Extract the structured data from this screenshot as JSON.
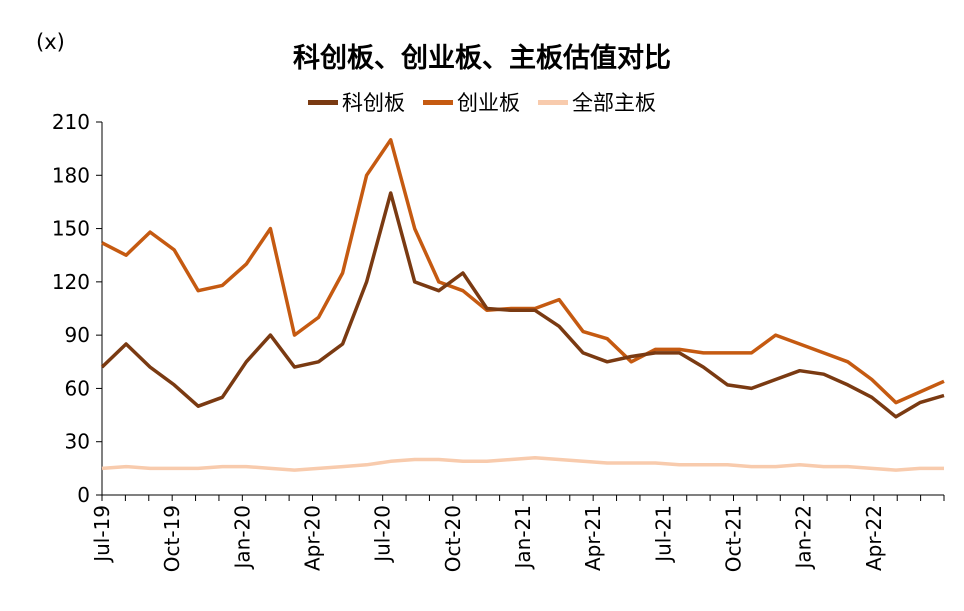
{
  "chart_data": {
    "type": "line",
    "title": "科创板、创业板、主板估值对比",
    "unit_label": "(x)",
    "ylim": [
      0,
      210
    ],
    "yticks": [
      0,
      30,
      60,
      90,
      120,
      150,
      180,
      210
    ],
    "xticks": [
      "Jul-19",
      "Oct-19",
      "Jan-20",
      "Apr-20",
      "Jul-20",
      "Oct-20",
      "Jan-21",
      "Apr-21",
      "Jul-21",
      "Oct-21",
      "Jan-22",
      "Apr-22"
    ],
    "grid": false,
    "legend_position": "top",
    "x": [
      "2019-07",
      "2019-08",
      "2019-09",
      "2019-10",
      "2019-11",
      "2019-12",
      "2020-01",
      "2020-02",
      "2020-03",
      "2020-04",
      "2020-05",
      "2020-06",
      "2020-07",
      "2020-08",
      "2020-09",
      "2020-10",
      "2020-11",
      "2020-12",
      "2021-01",
      "2021-02",
      "2021-03",
      "2021-04",
      "2021-05",
      "2021-06",
      "2021-07",
      "2021-08",
      "2021-09",
      "2021-10",
      "2021-11",
      "2021-12",
      "2022-01",
      "2022-02",
      "2022-03",
      "2022-04",
      "2022-05",
      "2022-06"
    ],
    "series": [
      {
        "name": "科创板",
        "color": "#7a3a12",
        "values": [
          72,
          85,
          72,
          62,
          50,
          55,
          75,
          90,
          72,
          75,
          85,
          120,
          170,
          120,
          115,
          125,
          105,
          104,
          104,
          95,
          80,
          75,
          78,
          80,
          80,
          72,
          62,
          60,
          65,
          70,
          68,
          62,
          55,
          44,
          52,
          56
        ]
      },
      {
        "name": "创业板",
        "color": "#c55a11",
        "values": [
          142,
          135,
          148,
          138,
          115,
          118,
          130,
          150,
          90,
          100,
          125,
          180,
          200,
          150,
          120,
          115,
          104,
          105,
          105,
          110,
          92,
          88,
          75,
          82,
          82,
          80,
          80,
          80,
          90,
          85,
          80,
          75,
          65,
          52,
          58,
          64
        ]
      },
      {
        "name": "全部主板",
        "color": "#f8cbad",
        "values": [
          15,
          16,
          15,
          15,
          15,
          16,
          16,
          15,
          14,
          15,
          16,
          17,
          19,
          20,
          20,
          19,
          19,
          20,
          21,
          20,
          19,
          18,
          18,
          18,
          17,
          17,
          17,
          16,
          16,
          17,
          16,
          16,
          15,
          14,
          15,
          15
        ]
      }
    ]
  }
}
